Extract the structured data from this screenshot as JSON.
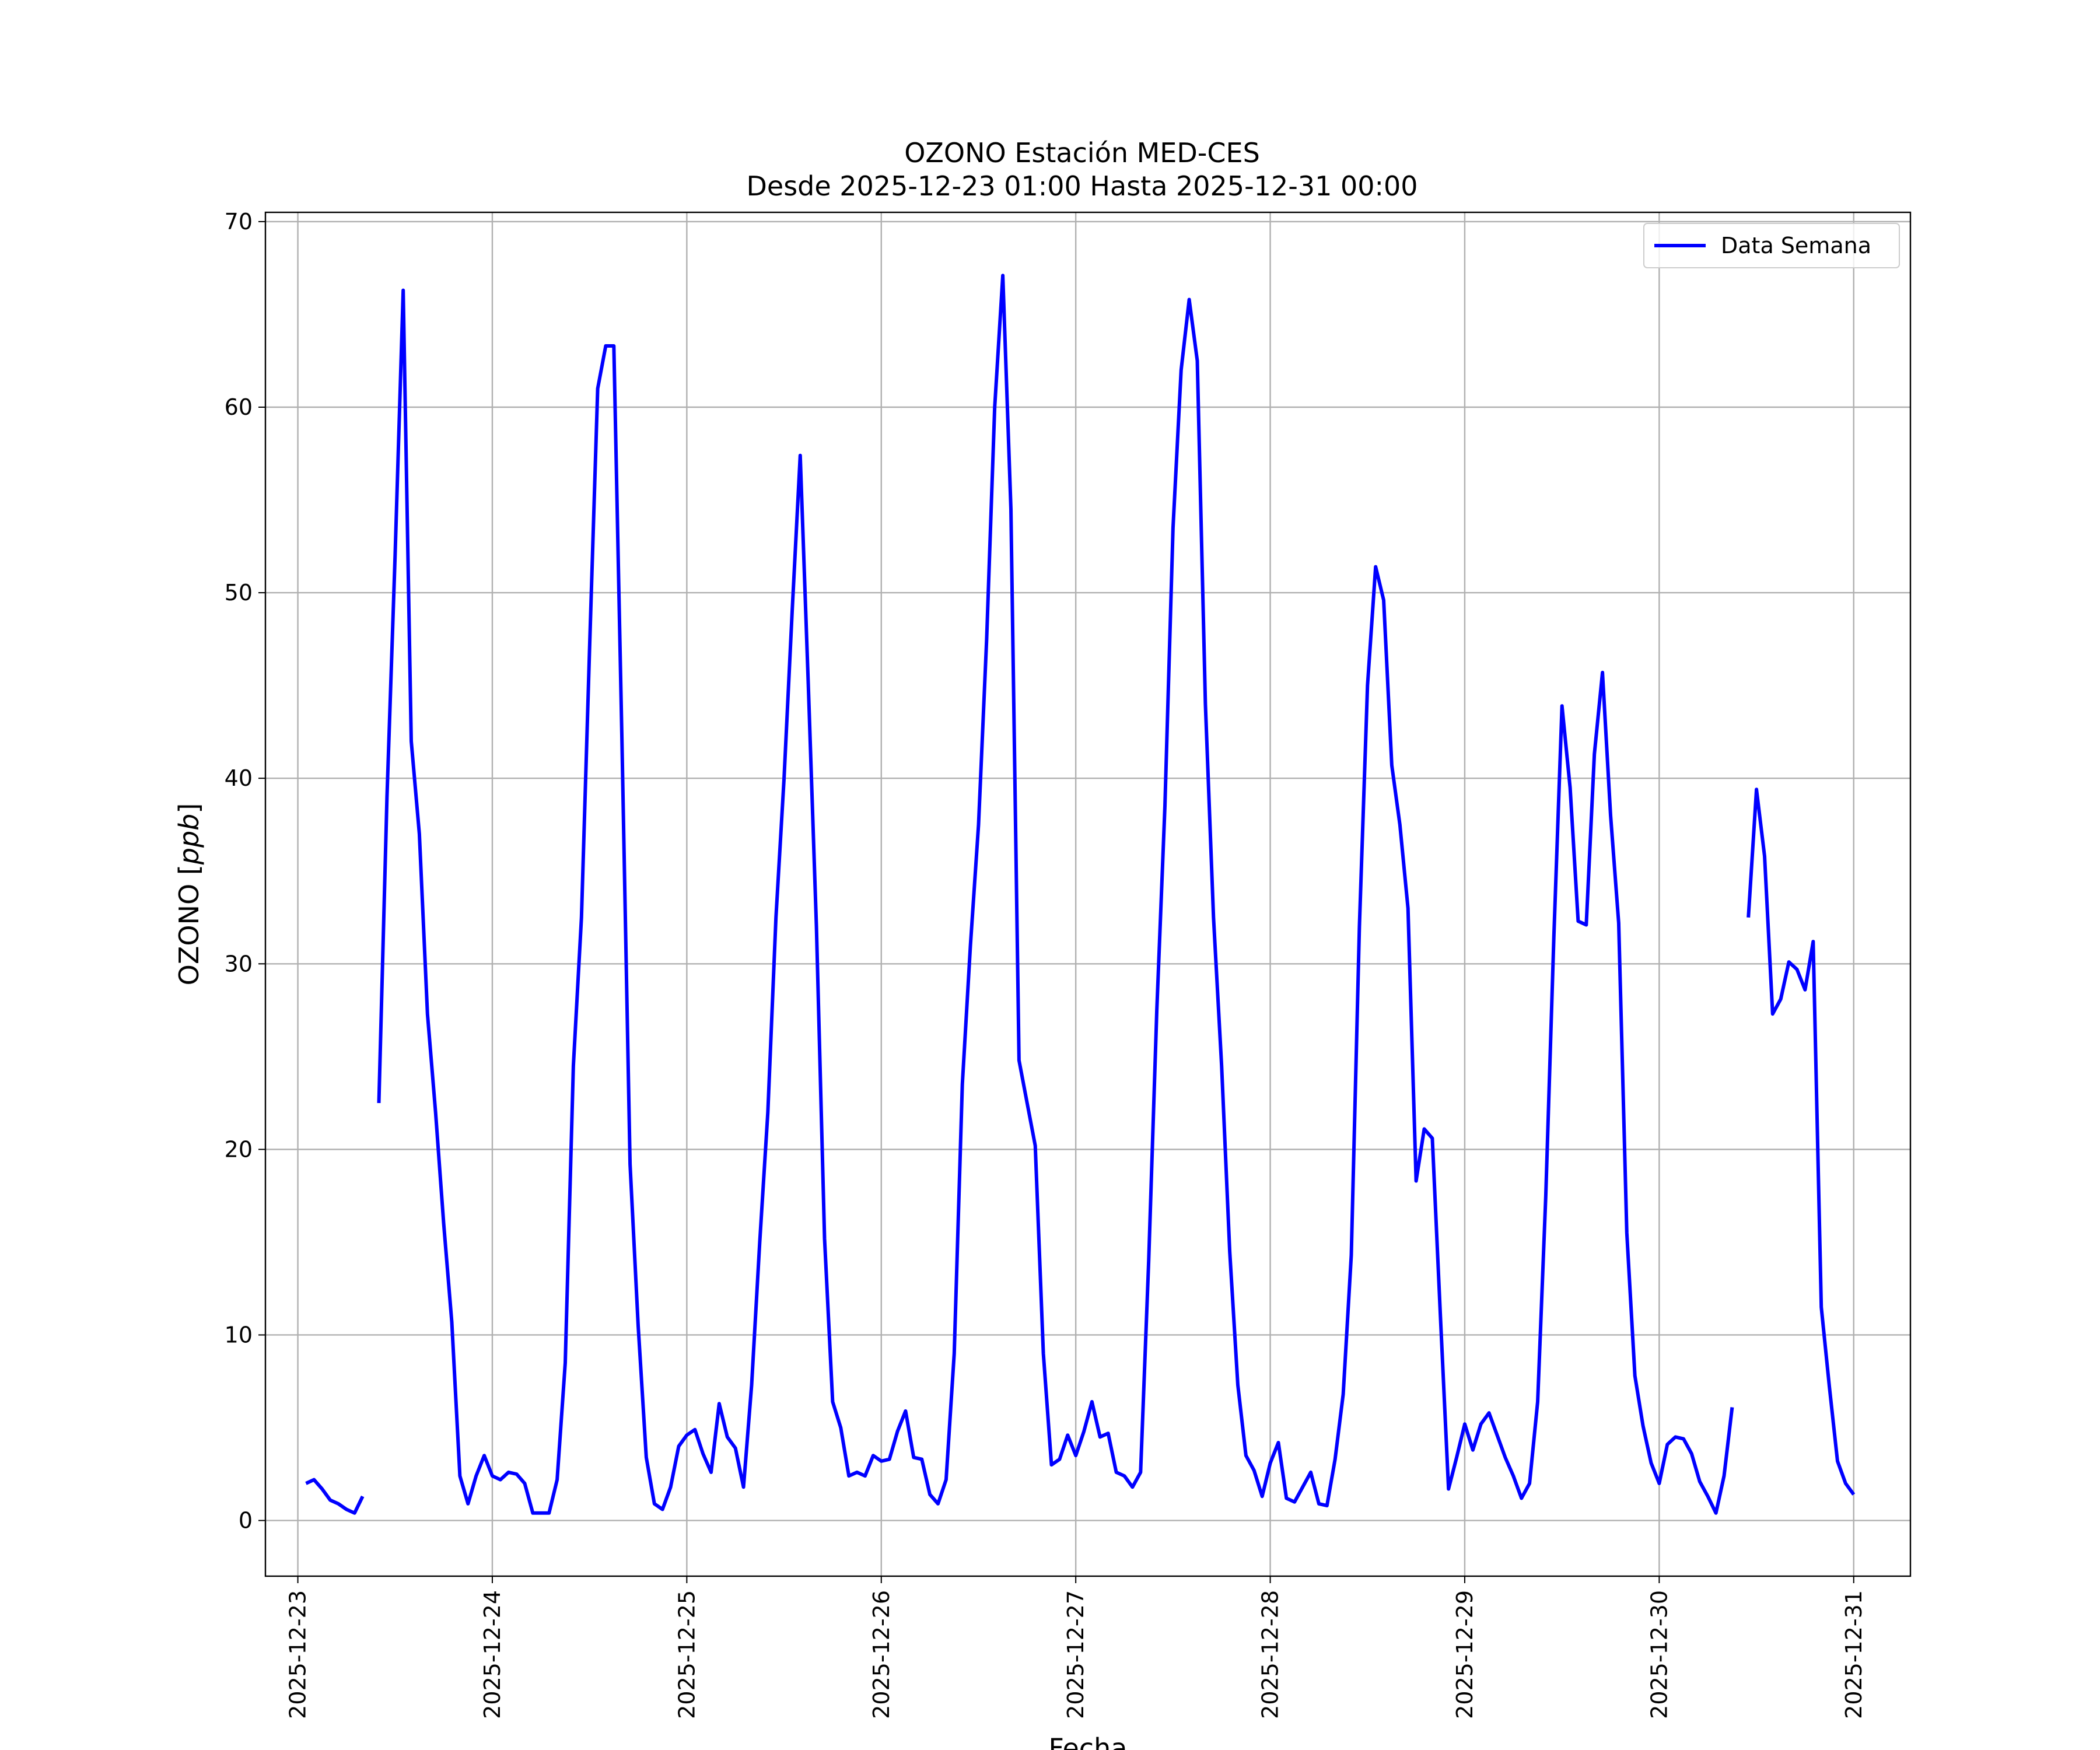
{
  "chart_data": {
    "type": "line",
    "title": "OZONO Estación MED-CES",
    "subtitle": "Desde 2025-12-23 01:00 Hasta 2025-12-31 00:00",
    "xlabel": "Fecha",
    "ylabel": "OZONO [ppb]",
    "ylabel_parts": {
      "prefix": "OZONO [",
      "unit": "ppb",
      "suffix": "]"
    },
    "xlim": [
      "2025-12-22 20:00",
      "2025-12-31 07:00"
    ],
    "ylim": [
      -3,
      70.5
    ],
    "x_ticks": [
      "2025-12-23",
      "2025-12-24",
      "2025-12-25",
      "2025-12-26",
      "2025-12-27",
      "2025-12-28",
      "2025-12-29",
      "2025-12-30",
      "2025-12-31"
    ],
    "y_ticks": [
      0,
      10,
      20,
      30,
      40,
      50,
      60,
      70
    ],
    "grid": true,
    "legend_position": "top-right",
    "series": [
      {
        "name": "Data Semana",
        "color": "#0000ff",
        "points": [
          [
            "2025-12-23 01:00",
            2.0
          ],
          [
            "2025-12-23 02:00",
            2.2
          ],
          [
            "2025-12-23 03:00",
            1.7
          ],
          [
            "2025-12-23 04:00",
            1.1
          ],
          [
            "2025-12-23 05:00",
            0.9
          ],
          [
            "2025-12-23 06:00",
            0.6
          ],
          [
            "2025-12-23 07:00",
            0.4
          ],
          [
            "2025-12-23 08:00",
            1.3
          ],
          [
            "2025-12-23 09:00",
            null
          ],
          [
            "2025-12-23 10:00",
            22.5
          ],
          [
            "2025-12-23 11:00",
            39.0
          ],
          [
            "2025-12-23 12:00",
            52.0
          ],
          [
            "2025-12-23 13:00",
            66.3
          ],
          [
            "2025-12-23 14:00",
            42.0
          ],
          [
            "2025-12-23 15:00",
            37.0
          ],
          [
            "2025-12-23 16:00",
            27.3
          ],
          [
            "2025-12-23 17:00",
            22.0
          ],
          [
            "2025-12-23 18:00",
            16.0
          ],
          [
            "2025-12-23 19:00",
            10.7
          ],
          [
            "2025-12-23 20:00",
            2.4
          ],
          [
            "2025-12-23 21:00",
            0.9
          ],
          [
            "2025-12-23 22:00",
            2.4
          ],
          [
            "2025-12-23 23:00",
            3.5
          ],
          [
            "2025-12-24 00:00",
            2.4
          ],
          [
            "2025-12-24 01:00",
            2.2
          ],
          [
            "2025-12-24 02:00",
            2.6
          ],
          [
            "2025-12-24 03:00",
            2.5
          ],
          [
            "2025-12-24 04:00",
            2.0
          ],
          [
            "2025-12-24 05:00",
            0.4
          ],
          [
            "2025-12-24 06:00",
            0.4
          ],
          [
            "2025-12-24 07:00",
            0.4
          ],
          [
            "2025-12-24 08:00",
            2.2
          ],
          [
            "2025-12-24 09:00",
            8.5
          ],
          [
            "2025-12-24 10:00",
            24.5
          ],
          [
            "2025-12-24 11:00",
            32.5
          ],
          [
            "2025-12-24 12:00",
            47.0
          ],
          [
            "2025-12-24 13:00",
            61.0
          ],
          [
            "2025-12-24 14:00",
            63.3
          ],
          [
            "2025-12-24 15:00",
            63.3
          ],
          [
            "2025-12-24 16:00",
            42.0
          ],
          [
            "2025-12-24 17:00",
            19.2
          ],
          [
            "2025-12-24 18:00",
            10.5
          ],
          [
            "2025-12-24 19:00",
            3.4
          ],
          [
            "2025-12-24 20:00",
            0.9
          ],
          [
            "2025-12-24 21:00",
            0.6
          ],
          [
            "2025-12-24 22:00",
            1.8
          ],
          [
            "2025-12-24 23:00",
            4.0
          ],
          [
            "2025-12-25 00:00",
            4.6
          ],
          [
            "2025-12-25 01:00",
            4.9
          ],
          [
            "2025-12-25 02:00",
            3.6
          ],
          [
            "2025-12-25 03:00",
            2.6
          ],
          [
            "2025-12-25 04:00",
            6.3
          ],
          [
            "2025-12-25 05:00",
            4.5
          ],
          [
            "2025-12-25 06:00",
            3.9
          ],
          [
            "2025-12-25 07:00",
            1.8
          ],
          [
            "2025-12-25 08:00",
            7.3
          ],
          [
            "2025-12-25 09:00",
            15.0
          ],
          [
            "2025-12-25 10:00",
            22.0
          ],
          [
            "2025-12-25 11:00",
            32.5
          ],
          [
            "2025-12-25 12:00",
            40.0
          ],
          [
            "2025-12-25 13:00",
            49.0
          ],
          [
            "2025-12-25 14:00",
            57.4
          ],
          [
            "2025-12-25 15:00",
            45.0
          ],
          [
            "2025-12-25 16:00",
            32.0
          ],
          [
            "2025-12-25 17:00",
            15.2
          ],
          [
            "2025-12-25 18:00",
            6.4
          ],
          [
            "2025-12-25 19:00",
            5.0
          ],
          [
            "2025-12-25 20:00",
            2.4
          ],
          [
            "2025-12-25 21:00",
            2.6
          ],
          [
            "2025-12-25 22:00",
            2.4
          ],
          [
            "2025-12-25 23:00",
            3.5
          ],
          [
            "2025-12-26 00:00",
            3.2
          ],
          [
            "2025-12-26 01:00",
            3.3
          ],
          [
            "2025-12-26 02:00",
            4.8
          ],
          [
            "2025-12-26 03:00",
            5.9
          ],
          [
            "2025-12-26 04:00",
            3.4
          ],
          [
            "2025-12-26 05:00",
            3.3
          ],
          [
            "2025-12-26 06:00",
            1.4
          ],
          [
            "2025-12-26 07:00",
            0.9
          ],
          [
            "2025-12-26 08:00",
            2.2
          ],
          [
            "2025-12-26 09:00",
            9.0
          ],
          [
            "2025-12-26 10:00",
            23.5
          ],
          [
            "2025-12-26 11:00",
            31.0
          ],
          [
            "2025-12-26 12:00",
            37.5
          ],
          [
            "2025-12-26 13:00",
            47.5
          ],
          [
            "2025-12-26 14:00",
            60.0
          ],
          [
            "2025-12-26 15:00",
            67.1
          ],
          [
            "2025-12-26 16:00",
            54.5
          ],
          [
            "2025-12-26 17:00",
            24.8
          ],
          [
            "2025-12-26 18:00",
            22.5
          ],
          [
            "2025-12-26 19:00",
            20.2
          ],
          [
            "2025-12-26 20:00",
            9.0
          ],
          [
            "2025-12-26 21:00",
            3.0
          ],
          [
            "2025-12-26 22:00",
            3.3
          ],
          [
            "2025-12-26 23:00",
            4.6
          ],
          [
            "2025-12-27 00:00",
            3.5
          ],
          [
            "2025-12-27 01:00",
            4.8
          ],
          [
            "2025-12-27 02:00",
            6.4
          ],
          [
            "2025-12-27 03:00",
            4.5
          ],
          [
            "2025-12-27 04:00",
            4.7
          ],
          [
            "2025-12-27 05:00",
            2.6
          ],
          [
            "2025-12-27 06:00",
            2.4
          ],
          [
            "2025-12-27 07:00",
            1.8
          ],
          [
            "2025-12-27 08:00",
            2.6
          ],
          [
            "2025-12-27 09:00",
            14.0
          ],
          [
            "2025-12-27 10:00",
            27.5
          ],
          [
            "2025-12-27 11:00",
            38.5
          ],
          [
            "2025-12-27 12:00",
            53.5
          ],
          [
            "2025-12-27 13:00",
            62.0
          ],
          [
            "2025-12-27 14:00",
            65.8
          ],
          [
            "2025-12-27 15:00",
            62.5
          ],
          [
            "2025-12-27 16:00",
            44.0
          ],
          [
            "2025-12-27 17:00",
            32.5
          ],
          [
            "2025-12-27 18:00",
            24.5
          ],
          [
            "2025-12-27 19:00",
            14.5
          ],
          [
            "2025-12-27 20:00",
            7.3
          ],
          [
            "2025-12-27 21:00",
            3.5
          ],
          [
            "2025-12-27 22:00",
            2.7
          ],
          [
            "2025-12-27 23:00",
            1.3
          ],
          [
            "2025-12-28 00:00",
            3.1
          ],
          [
            "2025-12-28 01:00",
            4.2
          ],
          [
            "2025-12-28 02:00",
            1.2
          ],
          [
            "2025-12-28 03:00",
            1.0
          ],
          [
            "2025-12-28 04:00",
            1.8
          ],
          [
            "2025-12-28 05:00",
            2.6
          ],
          [
            "2025-12-28 06:00",
            0.9
          ],
          [
            "2025-12-28 07:00",
            0.8
          ],
          [
            "2025-12-28 08:00",
            3.3
          ],
          [
            "2025-12-28 09:00",
            6.8
          ],
          [
            "2025-12-28 10:00",
            14.3
          ],
          [
            "2025-12-28 11:00",
            32.0
          ],
          [
            "2025-12-28 12:00",
            45.0
          ],
          [
            "2025-12-28 13:00",
            51.4
          ],
          [
            "2025-12-28 14:00",
            49.6
          ],
          [
            "2025-12-28 15:00",
            40.7
          ],
          [
            "2025-12-28 16:00",
            37.5
          ],
          [
            "2025-12-28 17:00",
            33.0
          ],
          [
            "2025-12-28 18:00",
            18.3
          ],
          [
            "2025-12-28 19:00",
            21.1
          ],
          [
            "2025-12-28 20:00",
            20.6
          ],
          [
            "2025-12-28 21:00",
            11.0
          ],
          [
            "2025-12-28 22:00",
            1.7
          ],
          [
            "2025-12-28 23:00",
            3.4
          ],
          [
            "2025-12-29 00:00",
            5.2
          ],
          [
            "2025-12-29 01:00",
            3.8
          ],
          [
            "2025-12-29 02:00",
            5.2
          ],
          [
            "2025-12-29 03:00",
            5.8
          ],
          [
            "2025-12-29 04:00",
            4.6
          ],
          [
            "2025-12-29 05:00",
            3.4
          ],
          [
            "2025-12-29 06:00",
            2.4
          ],
          [
            "2025-12-29 07:00",
            1.2
          ],
          [
            "2025-12-29 08:00",
            2.0
          ],
          [
            "2025-12-29 09:00",
            6.4
          ],
          [
            "2025-12-29 10:00",
            17.5
          ],
          [
            "2025-12-29 11:00",
            31.5
          ],
          [
            "2025-12-29 12:00",
            43.9
          ],
          [
            "2025-12-29 13:00",
            39.5
          ],
          [
            "2025-12-29 14:00",
            32.3
          ],
          [
            "2025-12-29 15:00",
            32.1
          ],
          [
            "2025-12-29 16:00",
            41.3
          ],
          [
            "2025-12-29 17:00",
            45.7
          ],
          [
            "2025-12-29 18:00",
            38.0
          ],
          [
            "2025-12-29 19:00",
            32.2
          ],
          [
            "2025-12-29 20:00",
            15.5
          ],
          [
            "2025-12-29 21:00",
            7.8
          ],
          [
            "2025-12-29 22:00",
            5.1
          ],
          [
            "2025-12-29 23:00",
            3.1
          ],
          [
            "2025-12-30 00:00",
            2.0
          ],
          [
            "2025-12-30 01:00",
            4.1
          ],
          [
            "2025-12-30 02:00",
            4.5
          ],
          [
            "2025-12-30 03:00",
            4.4
          ],
          [
            "2025-12-30 04:00",
            3.6
          ],
          [
            "2025-12-30 05:00",
            2.1
          ],
          [
            "2025-12-30 06:00",
            1.3
          ],
          [
            "2025-12-30 07:00",
            0.4
          ],
          [
            "2025-12-30 08:00",
            2.4
          ],
          [
            "2025-12-30 09:00",
            6.1
          ],
          [
            "2025-12-30 10:00",
            null
          ],
          [
            "2025-12-30 11:00",
            32.5
          ],
          [
            "2025-12-30 12:00",
            39.4
          ],
          [
            "2025-12-30 13:00",
            35.8
          ],
          [
            "2025-12-30 14:00",
            27.3
          ],
          [
            "2025-12-30 15:00",
            28.1
          ],
          [
            "2025-12-30 16:00",
            30.1
          ],
          [
            "2025-12-30 17:00",
            29.7
          ],
          [
            "2025-12-30 18:00",
            28.6
          ],
          [
            "2025-12-30 19:00",
            31.2
          ],
          [
            "2025-12-30 20:00",
            11.5
          ],
          [
            "2025-12-30 21:00",
            7.2
          ],
          [
            "2025-12-30 22:00",
            3.2
          ],
          [
            "2025-12-30 23:00",
            2.0
          ],
          [
            "2025-12-31 00:00",
            1.4
          ]
        ]
      }
    ]
  }
}
